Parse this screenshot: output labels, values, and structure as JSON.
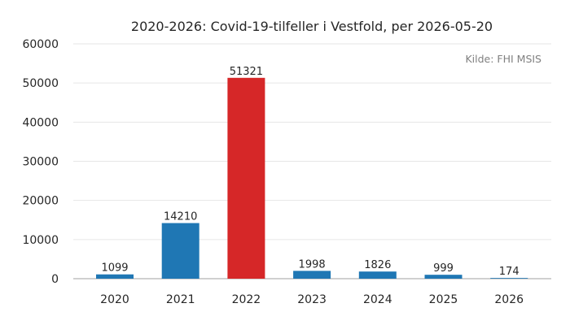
{
  "chart_data": {
    "type": "bar",
    "title": "2020-2026: Covid-19-tilfeller i Vestfold, per 2026-05-20",
    "source_note": "Kilde: FHI MSIS",
    "categories": [
      "2020",
      "2021",
      "2022",
      "2023",
      "2024",
      "2025",
      "2026"
    ],
    "values": [
      1099,
      14210,
      51321,
      1998,
      1826,
      999,
      174
    ],
    "data_labels": [
      "1099",
      "14210",
      "51321",
      "1998",
      "1826",
      "999",
      "174"
    ],
    "bar_colors": [
      "#1f77b4",
      "#1f77b4",
      "#d62728",
      "#1f77b4",
      "#1f77b4",
      "#1f77b4",
      "#1f77b4"
    ],
    "xlabel": "",
    "ylabel": "",
    "ylim": [
      0,
      60000
    ],
    "yticks": [
      0,
      10000,
      20000,
      30000,
      40000,
      50000,
      60000
    ],
    "ytick_labels": [
      "0",
      "10000",
      "20000",
      "30000",
      "40000",
      "50000",
      "60000"
    ],
    "grid": true,
    "legend": "none"
  }
}
